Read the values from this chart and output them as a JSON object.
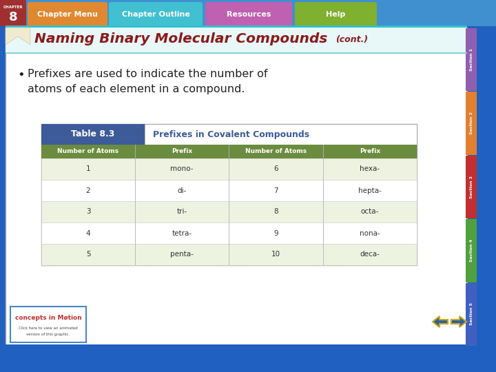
{
  "bg_color": "#2060c0",
  "slide_bg": "#ffffff",
  "top_nav_bg": "#4090d0",
  "chapter_box_color": "#a03030",
  "nav_buttons": [
    "Chapter Menu",
    "Chapter Outline",
    "Resources",
    "Help"
  ],
  "nav_btn_colors": [
    "#e08830",
    "#40c0d0",
    "#c060b0",
    "#80b030"
  ],
  "nav_btn_text_color": "#ffffff",
  "title_text": "Naming Binary Molecular Compounds",
  "title_cont": "(cont.)",
  "title_color": "#8B1A1A",
  "bullet_text": "Prefixes are used to indicate the number of\natoms of each element in a compound.",
  "table_title": "Table 8.3",
  "table_subtitle": "Prefixes in Covalent Compounds",
  "table_header_bg": "#3d5a99",
  "table_subtitle_color": "#3d5a99",
  "table_col_header_bg": "#6b8c3e",
  "table_row_bg1": "#ffffff",
  "table_row_bg2": "#eef2e0",
  "table_border_color": "#aaaaaa",
  "col_headers": [
    "Number of Atoms",
    "Prefix",
    "Number of Atoms",
    "Prefix"
  ],
  "table_data": [
    [
      "1",
      "mono-",
      "6",
      "hexa-"
    ],
    [
      "2",
      "di-",
      "7",
      "hepta-"
    ],
    [
      "3",
      "tri-",
      "8",
      "octa-"
    ],
    [
      "4",
      "tetra-",
      "9",
      "nona-"
    ],
    [
      "5",
      "penta-",
      "10",
      "deca-"
    ]
  ],
  "side_tab_colors": [
    "#9060b0",
    "#e08030",
    "#c03030",
    "#50a040",
    "#4060c0"
  ],
  "side_tab_labels": [
    "Section 1",
    "Section 2",
    "Section 3",
    "Section 4",
    "Section 5"
  ],
  "arrow_left_color": "#c8a820",
  "arrow_right_color": "#4070b0",
  "arrow_outline_color": "#c8a820",
  "logo_border_color": "#4488cc"
}
